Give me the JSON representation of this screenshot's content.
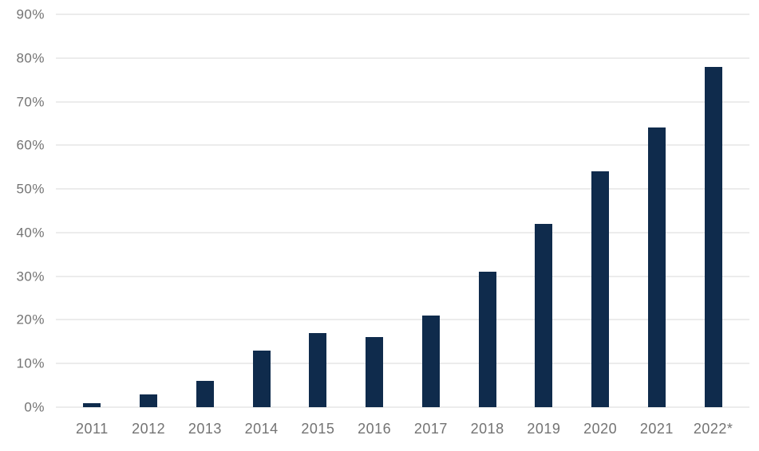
{
  "chart_data": {
    "type": "bar",
    "title": "",
    "xlabel": "",
    "ylabel": "",
    "categories": [
      "2011",
      "2012",
      "2013",
      "2014",
      "2015",
      "2016",
      "2017",
      "2018",
      "2019",
      "2020",
      "2021",
      "2022*"
    ],
    "values": [
      1,
      3,
      6,
      13,
      17,
      16,
      21,
      31,
      42,
      54,
      64,
      78
    ],
    "ylim": [
      0,
      90
    ],
    "y_ticks": [
      0,
      10,
      20,
      30,
      40,
      50,
      60,
      70,
      80,
      90
    ],
    "y_tick_suffix": "%",
    "grid": true,
    "legend": false,
    "bar_color": "#0f2b4c",
    "grid_color": "#d9d9d9",
    "axis_text_color": "#737373",
    "background_color": "#ffffff"
  }
}
